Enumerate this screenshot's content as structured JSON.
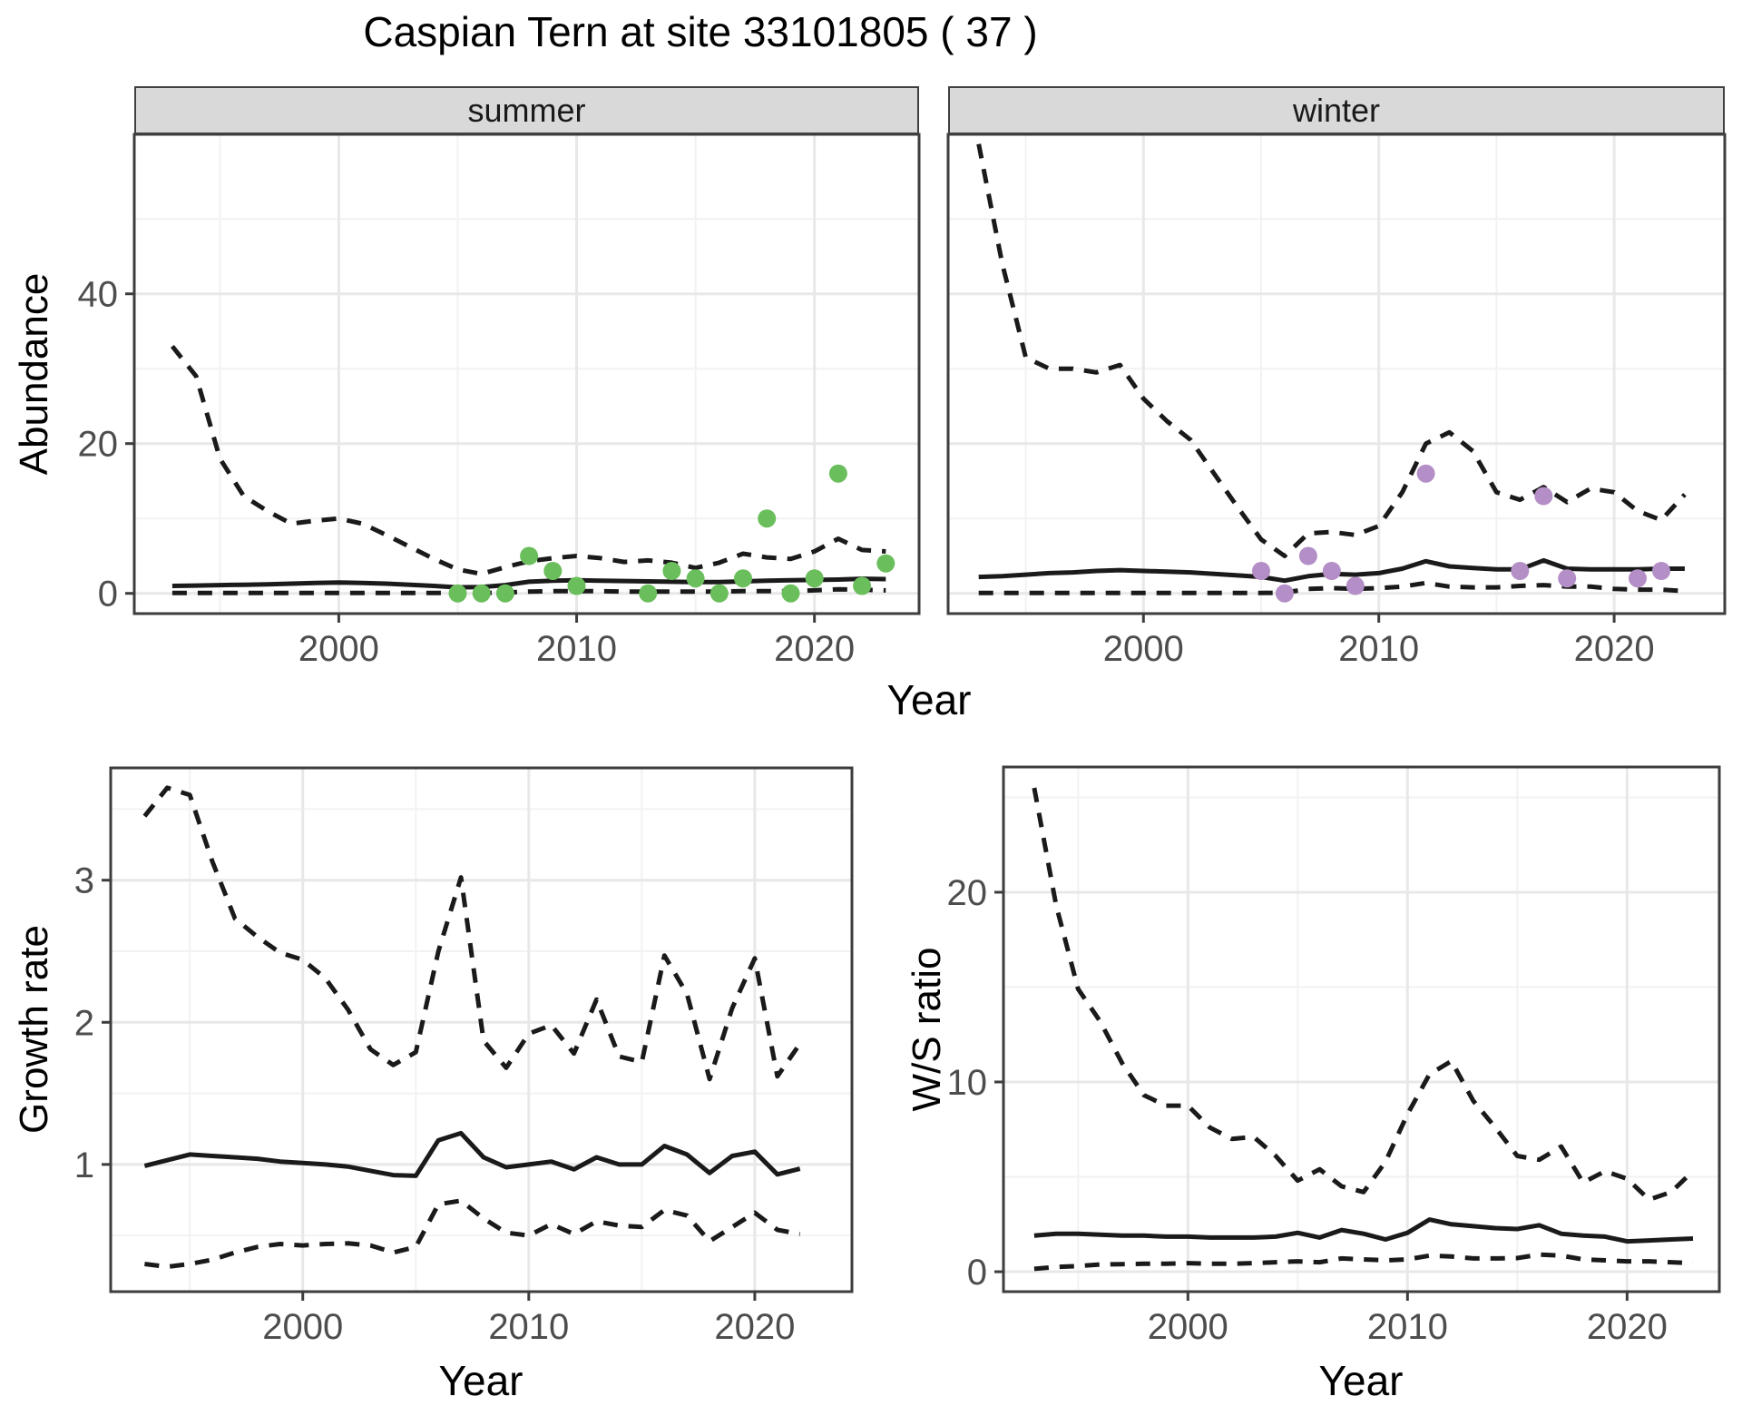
{
  "title": "Caspian Tern at site 33101805 ( 37 )",
  "facets": {
    "summer_label": "summer",
    "winter_label": "winter"
  },
  "axis_titles": {
    "abundance": "Abundance",
    "year_top": "Year",
    "growth_rate": "Growth rate",
    "year_growth": "Year",
    "ws_ratio": "W/S ratio",
    "year_ratio": "Year"
  },
  "colors": {
    "summer_point": "#6ABE5B",
    "winter_point": "#B48EC6",
    "line": "#1A1A1A",
    "panel_border": "#3d3d3d",
    "grid_major": "#e8e8e8",
    "grid_minor": "#f2f2f2",
    "tick_label": "#4d4d4d",
    "strip_bg": "#d9d9d9"
  },
  "chart_data": [
    {
      "id": "abundance_summer",
      "type": "line",
      "facet": "summer",
      "xlabel": "Year",
      "ylabel": "Abundance",
      "xlim": [
        1991.4,
        2024.4
      ],
      "ylim": [
        -2.7,
        61.3
      ],
      "x_ticks": [
        2000,
        2010,
        2020
      ],
      "x_minor": [
        1995,
        2005,
        2015
      ],
      "y_ticks": [
        0,
        20,
        40
      ],
      "y_minor": [
        10,
        30,
        50
      ],
      "years": [
        1993,
        1994,
        1995,
        1996,
        1997,
        1998,
        1999,
        2000,
        2001,
        2002,
        2003,
        2004,
        2005,
        2006,
        2007,
        2008,
        2009,
        2010,
        2011,
        2012,
        2013,
        2014,
        2015,
        2016,
        2017,
        2018,
        2019,
        2020,
        2021,
        2022,
        2023
      ],
      "series": [
        {
          "name": "upper_95ci",
          "style": "dashed",
          "values": [
            33,
            29,
            18,
            13,
            11,
            9.3,
            9.7,
            10,
            9.3,
            7.8,
            6.2,
            4.6,
            3.2,
            2.6,
            3.5,
            4.3,
            4.7,
            5.0,
            4.7,
            4.2,
            4.4,
            4.1,
            3.4,
            4.1,
            5.3,
            4.8,
            4.6,
            5.6,
            7.3,
            5.8,
            5.6
          ]
        },
        {
          "name": "median",
          "style": "solid",
          "values": [
            1.0,
            1.05,
            1.1,
            1.15,
            1.2,
            1.3,
            1.4,
            1.45,
            1.4,
            1.3,
            1.15,
            1.0,
            0.8,
            0.85,
            1.1,
            1.55,
            1.7,
            1.75,
            1.7,
            1.65,
            1.6,
            1.55,
            1.5,
            1.5,
            1.6,
            1.7,
            1.75,
            1.8,
            1.85,
            1.95,
            1.9
          ]
        },
        {
          "name": "lower_95ci",
          "style": "dashed",
          "values": [
            0.05,
            0.05,
            0.05,
            0.05,
            0.05,
            0.05,
            0.05,
            0.05,
            0.05,
            0.05,
            0.05,
            0.05,
            0.05,
            0.05,
            0.1,
            0.25,
            0.3,
            0.3,
            0.3,
            0.25,
            0.25,
            0.25,
            0.25,
            0.25,
            0.3,
            0.3,
            0.3,
            0.4,
            0.55,
            0.5,
            0.4
          ]
        }
      ],
      "observations": {
        "name": "summer_observed_counts",
        "color_key": "summer_point",
        "points": [
          [
            2005,
            0
          ],
          [
            2006,
            0
          ],
          [
            2007,
            0
          ],
          [
            2008,
            5
          ],
          [
            2009,
            3
          ],
          [
            2010,
            1
          ],
          [
            2013,
            0
          ],
          [
            2014,
            3
          ],
          [
            2015,
            2
          ],
          [
            2016,
            0
          ],
          [
            2017,
            2
          ],
          [
            2018,
            10
          ],
          [
            2019,
            0
          ],
          [
            2020,
            2
          ],
          [
            2021,
            16
          ],
          [
            2022,
            1
          ],
          [
            2023,
            4
          ]
        ]
      }
    },
    {
      "id": "abundance_winter",
      "type": "line",
      "facet": "winter",
      "xlabel": "Year",
      "ylabel": "Abundance",
      "xlim": [
        1991.7,
        2024.7
      ],
      "ylim": [
        -2.7,
        61.3
      ],
      "x_ticks": [
        2000,
        2010,
        2020
      ],
      "x_minor": [
        1995,
        2005,
        2015
      ],
      "y_ticks": [
        0,
        20,
        40
      ],
      "y_minor": [
        10,
        30,
        50
      ],
      "years": [
        1993,
        1994,
        1995,
        1996,
        1997,
        1998,
        1999,
        2000,
        2001,
        2002,
        2003,
        2004,
        2005,
        2006,
        2007,
        2008,
        2009,
        2010,
        2011,
        2012,
        2013,
        2014,
        2015,
        2016,
        2017,
        2018,
        2019,
        2020,
        2021,
        2022,
        2023
      ],
      "series": [
        {
          "name": "upper_95ci",
          "style": "dashed",
          "values": [
            60,
            44,
            31.5,
            30,
            30,
            29.5,
            30.5,
            26,
            23,
            20.5,
            16,
            11.5,
            7.2,
            5.0,
            8.0,
            8.2,
            7.8,
            9.0,
            13.5,
            20,
            21.5,
            19,
            13.5,
            12.5,
            14.2,
            12.2,
            14.0,
            13.5,
            11.0,
            9.8,
            13.2
          ]
        },
        {
          "name": "median",
          "style": "solid",
          "values": [
            2.2,
            2.3,
            2.5,
            2.7,
            2.8,
            3.0,
            3.1,
            3.0,
            2.9,
            2.8,
            2.6,
            2.4,
            2.2,
            1.7,
            2.3,
            2.6,
            2.5,
            2.7,
            3.3,
            4.3,
            3.6,
            3.4,
            3.2,
            3.2,
            4.4,
            3.3,
            3.2,
            3.2,
            3.2,
            3.3,
            3.3
          ]
        },
        {
          "name": "lower_95ci",
          "style": "dashed",
          "values": [
            0.05,
            0.05,
            0.05,
            0.05,
            0.05,
            0.05,
            0.05,
            0.05,
            0.05,
            0.05,
            0.05,
            0.05,
            0.05,
            0.1,
            0.6,
            0.7,
            0.6,
            0.7,
            0.9,
            1.4,
            0.9,
            0.8,
            0.8,
            1.0,
            1.1,
            0.9,
            0.9,
            0.6,
            0.5,
            0.5,
            0.3
          ]
        }
      ],
      "observations": {
        "name": "winter_observed_counts",
        "color_key": "winter_point",
        "points": [
          [
            2005,
            3
          ],
          [
            2006,
            0
          ],
          [
            2007,
            5
          ],
          [
            2008,
            3
          ],
          [
            2009,
            1
          ],
          [
            2012,
            16
          ],
          [
            2016,
            3
          ],
          [
            2017,
            13
          ],
          [
            2018,
            2
          ],
          [
            2021,
            2
          ],
          [
            2022,
            3
          ]
        ]
      }
    },
    {
      "id": "growth_rate",
      "type": "line",
      "facet": "",
      "xlabel": "Year",
      "ylabel": "Growth rate",
      "xlim": [
        1991.5,
        2024.3
      ],
      "ylim": [
        0.105,
        3.79
      ],
      "x_ticks": [
        2000,
        2010,
        2020
      ],
      "x_minor": [
        1995,
        2005,
        2015
      ],
      "y_ticks": [
        1,
        2,
        3
      ],
      "y_minor": [
        0.5,
        1.5,
        2.5,
        3.5
      ],
      "years": [
        1993,
        1994,
        1995,
        1996,
        1997,
        1998,
        1999,
        2000,
        2001,
        2002,
        2003,
        2004,
        2005,
        2006,
        2007,
        2008,
        2009,
        2010,
        2011,
        2012,
        2013,
        2014,
        2015,
        2016,
        2017,
        2018,
        2019,
        2020,
        2021,
        2022
      ],
      "series": [
        {
          "name": "upper_95ci",
          "style": "dashed",
          "values": [
            3.45,
            3.65,
            3.6,
            3.13,
            2.73,
            2.6,
            2.49,
            2.44,
            2.31,
            2.09,
            1.81,
            1.7,
            1.79,
            2.5,
            3.02,
            1.87,
            1.68,
            1.92,
            1.98,
            1.78,
            2.16,
            1.76,
            1.72,
            2.47,
            2.2,
            1.6,
            2.1,
            2.45,
            1.62,
            1.85
          ]
        },
        {
          "name": "median",
          "style": "solid",
          "values": [
            0.99,
            1.03,
            1.07,
            1.06,
            1.05,
            1.04,
            1.02,
            1.01,
            1.0,
            0.985,
            0.955,
            0.925,
            0.92,
            1.17,
            1.22,
            1.05,
            0.98,
            1.0,
            1.02,
            0.965,
            1.05,
            1.0,
            1.0,
            1.13,
            1.07,
            0.94,
            1.06,
            1.09,
            0.93,
            0.97
          ]
        },
        {
          "name": "lower_95ci",
          "style": "dashed",
          "values": [
            0.3,
            0.28,
            0.3,
            0.33,
            0.38,
            0.42,
            0.44,
            0.43,
            0.44,
            0.445,
            0.43,
            0.38,
            0.42,
            0.72,
            0.745,
            0.62,
            0.52,
            0.5,
            0.58,
            0.51,
            0.6,
            0.57,
            0.56,
            0.68,
            0.64,
            0.46,
            0.56,
            0.66,
            0.54,
            0.51
          ]
        }
      ],
      "observations": null
    },
    {
      "id": "ws_ratio",
      "type": "line",
      "facet": "",
      "xlabel": "Year",
      "ylabel": "W/S ratio",
      "xlim": [
        1991.6,
        2024.2
      ],
      "ylim": [
        -1.05,
        26.6
      ],
      "x_ticks": [
        2000,
        2010,
        2020
      ],
      "x_minor": [
        1995,
        2005,
        2015
      ],
      "y_ticks": [
        0,
        10,
        20
      ],
      "y_minor": [
        5,
        15,
        25
      ],
      "years": [
        1993,
        1994,
        1995,
        1996,
        1997,
        1998,
        1999,
        2000,
        2001,
        2002,
        2003,
        2004,
        2005,
        2006,
        2007,
        2008,
        2009,
        2010,
        2011,
        2012,
        2013,
        2014,
        2015,
        2016,
        2017,
        2018,
        2019,
        2020,
        2021,
        2022,
        2023
      ],
      "series": [
        {
          "name": "upper_95ci",
          "style": "dashed",
          "values": [
            25.5,
            19.3,
            14.9,
            13.2,
            11.0,
            9.3,
            8.75,
            8.75,
            7.6,
            7.0,
            7.1,
            6.1,
            4.8,
            5.4,
            4.5,
            4.2,
            5.8,
            8.3,
            10.4,
            11.1,
            9.0,
            7.6,
            6.1,
            5.9,
            6.6,
            4.7,
            5.3,
            4.9,
            3.8,
            4.2,
            5.3
          ]
        },
        {
          "name": "median",
          "style": "solid",
          "values": [
            1.9,
            2.0,
            2.0,
            1.95,
            1.9,
            1.9,
            1.85,
            1.85,
            1.8,
            1.8,
            1.8,
            1.85,
            2.05,
            1.8,
            2.2,
            2.0,
            1.7,
            2.05,
            2.75,
            2.5,
            2.4,
            2.3,
            2.25,
            2.45,
            2.0,
            1.9,
            1.85,
            1.6,
            1.65,
            1.7,
            1.75
          ]
        },
        {
          "name": "lower_95ci",
          "style": "dashed",
          "values": [
            0.15,
            0.25,
            0.3,
            0.38,
            0.4,
            0.42,
            0.42,
            0.45,
            0.42,
            0.42,
            0.45,
            0.5,
            0.55,
            0.5,
            0.7,
            0.65,
            0.6,
            0.65,
            0.85,
            0.8,
            0.7,
            0.7,
            0.72,
            0.9,
            0.85,
            0.65,
            0.6,
            0.55,
            0.55,
            0.5,
            0.45
          ]
        }
      ],
      "observations": null
    }
  ]
}
